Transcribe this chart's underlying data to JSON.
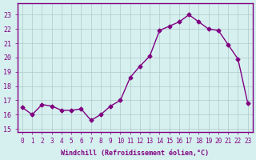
{
  "values": [
    16.5,
    16.0,
    16.7,
    16.6,
    16.3,
    16.3,
    16.4,
    15.6,
    16.0,
    16.6,
    17.0,
    18.6,
    19.4,
    20.1,
    21.9,
    22.2,
    22.5,
    23.0,
    22.5,
    22.0,
    21.9,
    20.9,
    19.9,
    16.8
  ],
  "xlabel": "Windchill (Refroidissement éolien,°C)",
  "ylim_min": 14.8,
  "ylim_max": 23.8,
  "yticks": [
    15,
    16,
    17,
    18,
    19,
    20,
    21,
    22,
    23
  ],
  "xticks": [
    0,
    1,
    2,
    3,
    4,
    5,
    6,
    7,
    8,
    9,
    10,
    11,
    12,
    13,
    14,
    15,
    16,
    17,
    18,
    19,
    20,
    21,
    22,
    23
  ],
  "line_color": "#800080",
  "marker_color": "#800080",
  "bg_color": "#d6f0f0",
  "grid_color": "#b0c8c8",
  "axis_color": "#800080",
  "tick_color": "#800080",
  "label_color": "#800080"
}
